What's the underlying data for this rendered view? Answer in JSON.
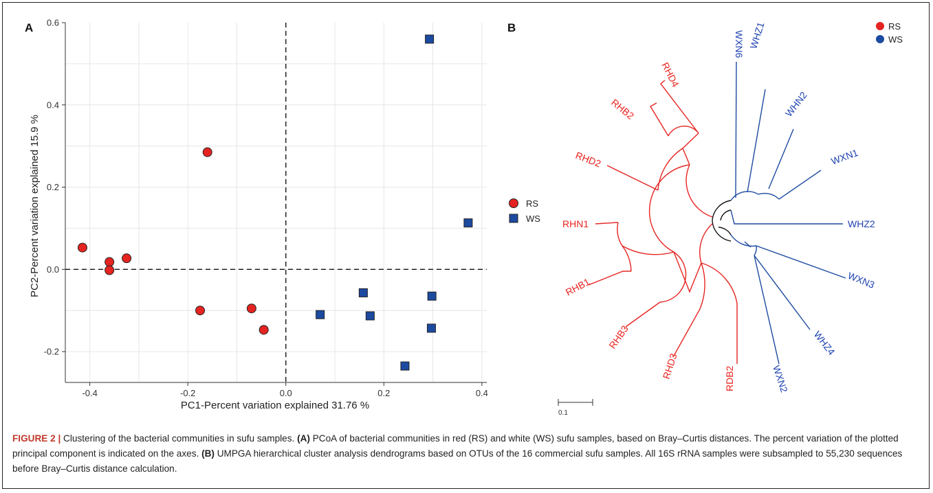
{
  "panel_a_letter": "A",
  "panel_b_letter": "B",
  "chart_data": [
    {
      "type": "scatter",
      "xlabel": "PC1-Percent variation explained  31.76 %",
      "ylabel": "PC2-Percent variation explained  15.9 %",
      "xlim": [
        -0.45,
        0.41
      ],
      "ylim": [
        -0.275,
        0.6
      ],
      "x_ticks": [
        "-0.4",
        "-0.2",
        "0.0",
        "0.2",
        "0.4"
      ],
      "y_ticks": [
        "-0.2",
        "0.0",
        "0.2",
        "0.4",
        "0.6"
      ],
      "x_tick_values": [
        -0.4,
        -0.2,
        0.0,
        0.2,
        0.4
      ],
      "y_tick_values": [
        -0.2,
        0.0,
        0.2,
        0.4,
        0.6
      ],
      "grid": true,
      "reference_lines": {
        "x": 0.0,
        "y": 0.0,
        "style": "dashed"
      },
      "legend_placement": "right",
      "series": [
        {
          "name": "RS",
          "marker": "circle",
          "color": "#e52421",
          "points": [
            [
              -0.415,
              0.053
            ],
            [
              -0.36,
              0.018
            ],
            [
              -0.36,
              -0.002
            ],
            [
              -0.325,
              0.027
            ],
            [
              -0.16,
              0.285
            ],
            [
              -0.175,
              -0.1
            ],
            [
              -0.07,
              -0.095
            ],
            [
              -0.045,
              -0.147
            ]
          ]
        },
        {
          "name": "WS",
          "marker": "square",
          "color": "#1c4aa0",
          "points": [
            [
              0.293,
              0.56
            ],
            [
              0.372,
              0.113
            ],
            [
              0.158,
              -0.057
            ],
            [
              0.298,
              -0.065
            ],
            [
              0.07,
              -0.11
            ],
            [
              0.172,
              -0.113
            ],
            [
              0.297,
              -0.143
            ],
            [
              0.243,
              -0.235
            ]
          ]
        }
      ]
    },
    {
      "type": "dendrogram",
      "legend": [
        {
          "label": "RS",
          "color": "#e52421"
        },
        {
          "label": "WS",
          "color": "#1c4aa0"
        }
      ],
      "scale_bar_label": "0.1",
      "leaves_red": [
        "RHD4",
        "RHB2",
        "RHD2",
        "RHN1",
        "RHB1",
        "RHB3",
        "RHD3",
        "RDB2"
      ],
      "leaves_blue": [
        "WXN6",
        "WHZ1",
        "WHN2",
        "WXN1",
        "WHZ2",
        "WXN3",
        "WHZ4",
        "WXN2"
      ]
    }
  ],
  "caption": {
    "label": "FIGURE 2 |",
    "title": " Clustering of the bacterial communities in sufu samples. ",
    "a_tag": "(A)",
    "a_text": " PCoA of bacterial communities in red (RS) and white (WS) sufu samples, based on Bray–Curtis distances. The percent variation of the plotted principal component is indicated on the axes. ",
    "b_tag": "(B)",
    "b_text": " UMPGA hierarchical cluster analysis dendrograms based on OTUs of the 16 commercial sufu samples. All 16S rRNA samples were subsampled to 55,230 sequences before Bray–Curtis distance calculation."
  }
}
